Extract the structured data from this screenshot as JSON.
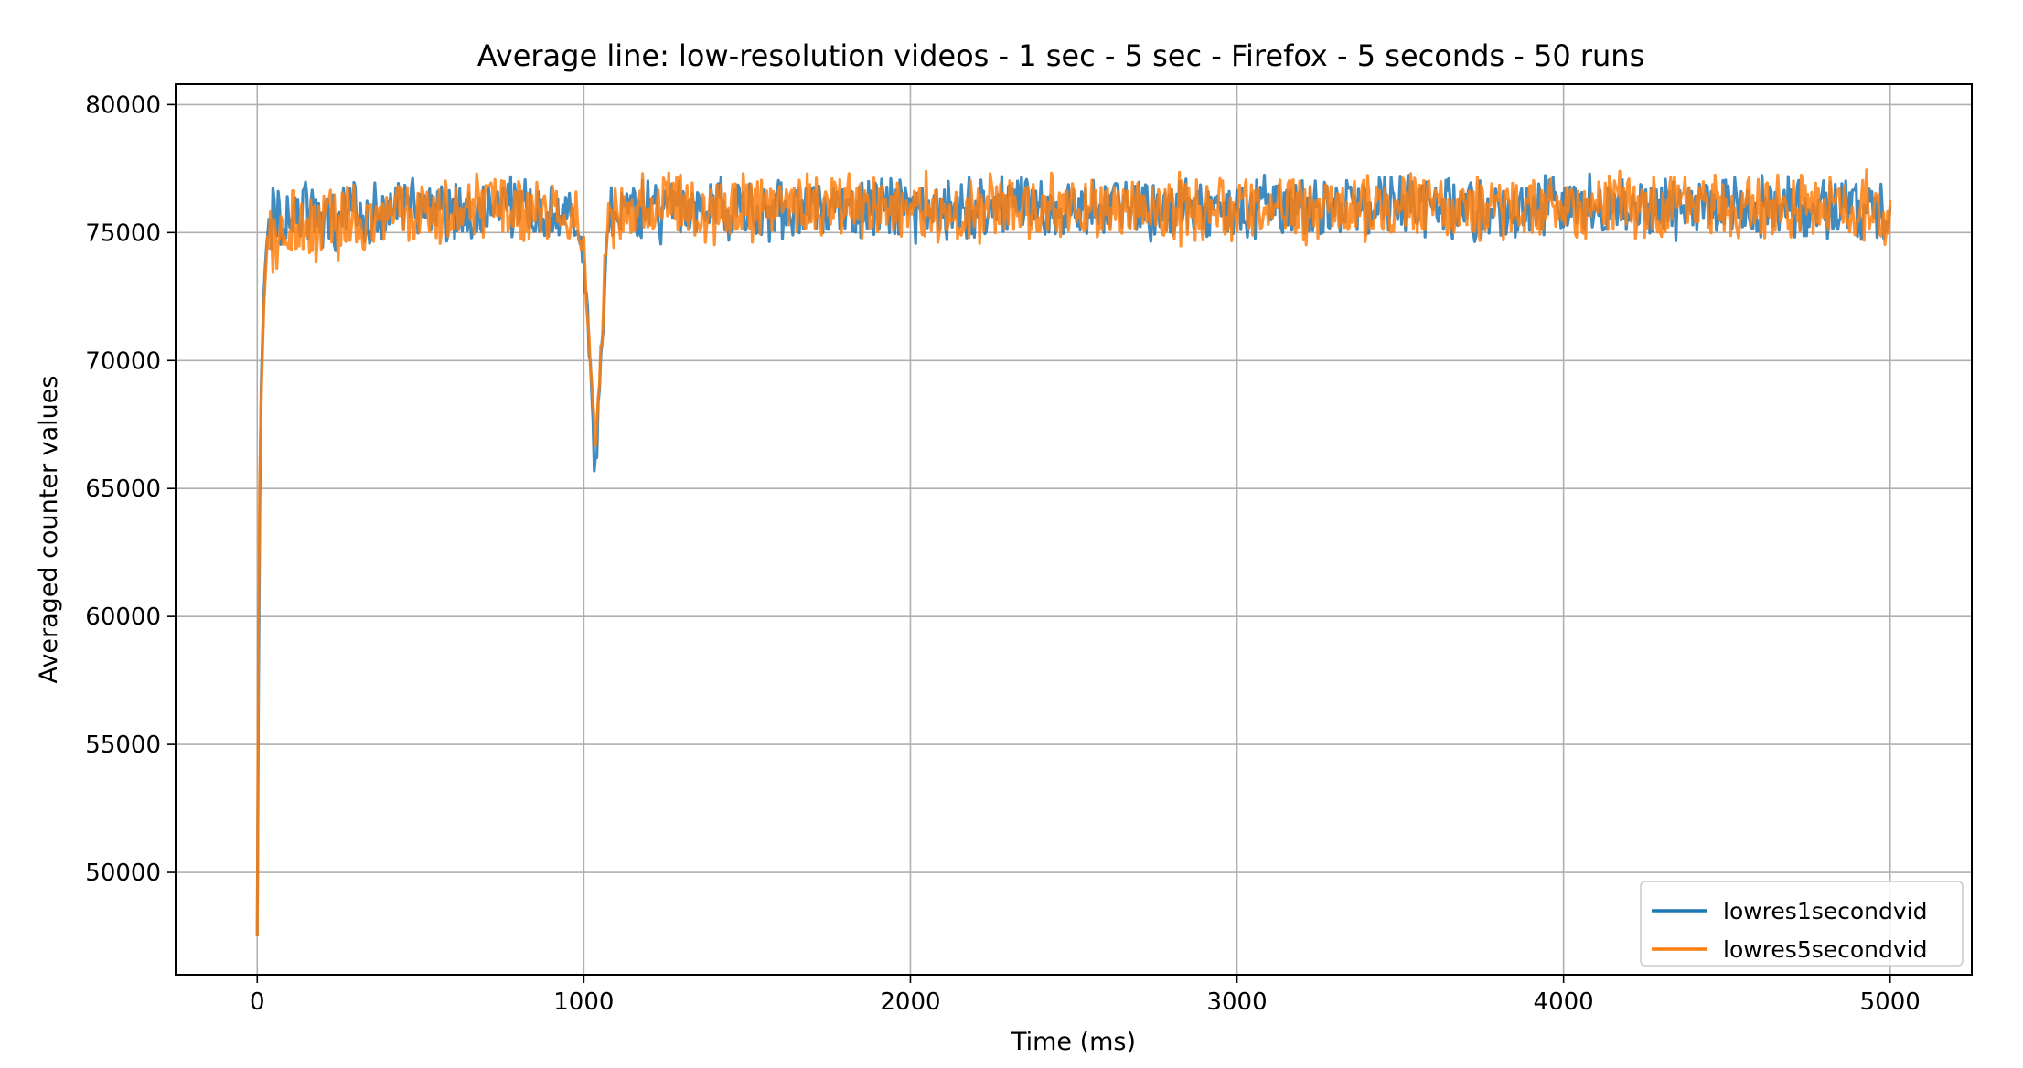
{
  "chart_data": {
    "type": "line",
    "title": "Average line: low-resolution videos - 1 sec - 5 sec  - Firefox - 5 seconds - 50 runs",
    "xlabel": "Time (ms)",
    "ylabel": "Averaged counter values",
    "xlim": [
      -250,
      5250
    ],
    "ylim": [
      46000,
      80800
    ],
    "xticks": [
      0,
      1000,
      2000,
      3000,
      4000,
      5000
    ],
    "yticks": [
      50000,
      55000,
      60000,
      65000,
      70000,
      75000,
      80000
    ],
    "grid": true,
    "legend_position": "bottom-right",
    "series": [
      {
        "name": "lowres1secondvid",
        "color": "#1f77b4",
        "points": [
          [
            0,
            47500
          ],
          [
            4,
            57500
          ],
          [
            8,
            64500
          ],
          [
            12,
            69000
          ],
          [
            20,
            72500
          ],
          [
            30,
            75000
          ],
          [
            50,
            75500
          ],
          [
            100,
            75800
          ],
          [
            200,
            75600
          ],
          [
            300,
            75700
          ],
          [
            400,
            75900
          ],
          [
            500,
            76000
          ],
          [
            600,
            75900
          ],
          [
            700,
            76000
          ],
          [
            800,
            75900
          ],
          [
            900,
            75800
          ],
          [
            980,
            75500
          ],
          [
            1000,
            73500
          ],
          [
            1015,
            71000
          ],
          [
            1025,
            68500
          ],
          [
            1035,
            65600
          ],
          [
            1045,
            68000
          ],
          [
            1055,
            70500
          ],
          [
            1065,
            73500
          ],
          [
            1080,
            75600
          ],
          [
            1100,
            75800
          ],
          [
            1200,
            75900
          ],
          [
            1300,
            76000
          ],
          [
            1400,
            75900
          ],
          [
            1500,
            76000
          ],
          [
            1600,
            75900
          ],
          [
            1700,
            76000
          ],
          [
            1800,
            75900
          ],
          [
            1900,
            76000
          ],
          [
            1980,
            75900
          ],
          [
            2000,
            75800
          ],
          [
            2100,
            75900
          ],
          [
            2200,
            75900
          ],
          [
            2300,
            76000
          ],
          [
            2400,
            75900
          ],
          [
            2500,
            76000
          ],
          [
            2600,
            75900
          ],
          [
            2700,
            76000
          ],
          [
            2800,
            75900
          ],
          [
            2900,
            76000
          ],
          [
            3000,
            75900
          ],
          [
            3100,
            76000
          ],
          [
            3200,
            75900
          ],
          [
            3300,
            76000
          ],
          [
            3400,
            75900
          ],
          [
            3500,
            76000
          ],
          [
            3600,
            75900
          ],
          [
            3700,
            76000
          ],
          [
            3800,
            75900
          ],
          [
            3900,
            76000
          ],
          [
            4000,
            75900
          ],
          [
            4100,
            76000
          ],
          [
            4200,
            75900
          ],
          [
            4300,
            76000
          ],
          [
            4400,
            75900
          ],
          [
            4500,
            76000
          ],
          [
            4600,
            75900
          ],
          [
            4700,
            76000
          ],
          [
            4800,
            75900
          ],
          [
            4900,
            76000
          ],
          [
            5000,
            75900
          ]
        ],
        "noise_amplitude": 1400
      },
      {
        "name": "lowres5secondvid",
        "color": "#ff7f0e",
        "points": [
          [
            0,
            47500
          ],
          [
            4,
            60000
          ],
          [
            8,
            65500
          ],
          [
            12,
            68500
          ],
          [
            20,
            72000
          ],
          [
            30,
            74500
          ],
          [
            50,
            75000
          ],
          [
            100,
            75200
          ],
          [
            200,
            75400
          ],
          [
            300,
            75500
          ],
          [
            400,
            75700
          ],
          [
            500,
            75800
          ],
          [
            600,
            75900
          ],
          [
            700,
            75900
          ],
          [
            800,
            75900
          ],
          [
            900,
            75900
          ],
          [
            980,
            75700
          ],
          [
            1000,
            74000
          ],
          [
            1015,
            71500
          ],
          [
            1025,
            69000
          ],
          [
            1035,
            67000
          ],
          [
            1045,
            69000
          ],
          [
            1055,
            71000
          ],
          [
            1065,
            74000
          ],
          [
            1080,
            75700
          ],
          [
            1100,
            75900
          ],
          [
            1200,
            76100
          ],
          [
            1300,
            76000
          ],
          [
            1400,
            76000
          ],
          [
            1500,
            76000
          ],
          [
            1600,
            75900
          ],
          [
            1700,
            76000
          ],
          [
            1800,
            75900
          ],
          [
            1900,
            76000
          ],
          [
            2000,
            75900
          ],
          [
            2100,
            76000
          ],
          [
            2200,
            75900
          ],
          [
            2300,
            76000
          ],
          [
            2400,
            75900
          ],
          [
            2500,
            76000
          ],
          [
            2600,
            75900
          ],
          [
            2700,
            76000
          ],
          [
            2800,
            75900
          ],
          [
            2900,
            76000
          ],
          [
            3000,
            75900
          ],
          [
            3100,
            76000
          ],
          [
            3200,
            75900
          ],
          [
            3300,
            76000
          ],
          [
            3400,
            75900
          ],
          [
            3500,
            76000
          ],
          [
            3600,
            75900
          ],
          [
            3700,
            76000
          ],
          [
            3800,
            75900
          ],
          [
            3900,
            76000
          ],
          [
            4000,
            75900
          ],
          [
            4100,
            76000
          ],
          [
            4200,
            75900
          ],
          [
            4300,
            76000
          ],
          [
            4400,
            75900
          ],
          [
            4500,
            76000
          ],
          [
            4600,
            75900
          ],
          [
            4700,
            76000
          ],
          [
            4800,
            75900
          ],
          [
            4900,
            76000
          ],
          [
            5000,
            75900
          ]
        ],
        "noise_amplitude": 1500
      }
    ]
  }
}
